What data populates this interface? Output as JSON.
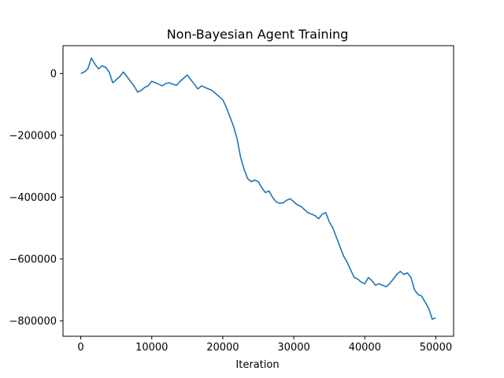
{
  "chart_data": {
    "type": "line",
    "title": "Non-Bayesian Agent Training",
    "xlabel": "Iteration",
    "ylabel": "",
    "xlim": [
      -2500,
      52500
    ],
    "ylim": [
      -850000,
      90000
    ],
    "x_ticks": [
      0,
      10000,
      20000,
      30000,
      40000,
      50000
    ],
    "x_tick_labels": [
      "0",
      "10000",
      "20000",
      "30000",
      "40000",
      "50000"
    ],
    "y_ticks": [
      0,
      -200000,
      -400000,
      -600000,
      -800000
    ],
    "y_tick_labels": [
      "0",
      "−200000",
      "−400000",
      "−600000",
      "−800000"
    ],
    "grid": false,
    "series": [
      {
        "name": "",
        "color": "#1f77b4",
        "x": [
          0,
          500,
          1000,
          1500,
          2000,
          2500,
          3000,
          3500,
          4000,
          4500,
          5000,
          5500,
          6000,
          6500,
          7000,
          7500,
          8000,
          8500,
          9000,
          9500,
          10000,
          10500,
          11000,
          11500,
          12000,
          12500,
          13000,
          13500,
          14000,
          14500,
          15000,
          15500,
          16000,
          16500,
          17000,
          17500,
          18000,
          18500,
          19000,
          19500,
          20000,
          20500,
          21000,
          21500,
          22000,
          22500,
          23000,
          23500,
          24000,
          24500,
          25000,
          25500,
          26000,
          26500,
          27000,
          27500,
          28000,
          28500,
          29000,
          29500,
          30000,
          30500,
          31000,
          31500,
          32000,
          32500,
          33000,
          33500,
          34000,
          34500,
          35000,
          35500,
          36000,
          36500,
          37000,
          37500,
          38000,
          38500,
          39000,
          39500,
          40000,
          40500,
          41000,
          41500,
          42000,
          42500,
          43000,
          43500,
          44000,
          44500,
          45000,
          45500,
          46000,
          46500,
          47000,
          47500,
          48000,
          48500,
          49000,
          49500,
          50000
        ],
        "values": [
          0,
          5000,
          15000,
          50000,
          30000,
          15000,
          25000,
          20000,
          5000,
          -30000,
          -20000,
          -10000,
          5000,
          -10000,
          -25000,
          -40000,
          -60000,
          -55000,
          -45000,
          -40000,
          -25000,
          -30000,
          -35000,
          -40000,
          -32000,
          -30000,
          -35000,
          -38000,
          -25000,
          -15000,
          -5000,
          -20000,
          -35000,
          -50000,
          -40000,
          -45000,
          -50000,
          -55000,
          -65000,
          -75000,
          -85000,
          -110000,
          -140000,
          -170000,
          -210000,
          -270000,
          -310000,
          -340000,
          -350000,
          -345000,
          -350000,
          -370000,
          -385000,
          -380000,
          -400000,
          -415000,
          -420000,
          -418000,
          -410000,
          -405000,
          -415000,
          -425000,
          -430000,
          -440000,
          -450000,
          -455000,
          -460000,
          -470000,
          -455000,
          -450000,
          -480000,
          -500000,
          -530000,
          -560000,
          -590000,
          -610000,
          -635000,
          -660000,
          -665000,
          -675000,
          -680000,
          -660000,
          -670000,
          -685000,
          -680000,
          -685000,
          -690000,
          -680000,
          -665000,
          -650000,
          -640000,
          -650000,
          -645000,
          -660000,
          -700000,
          -715000,
          -720000,
          -740000,
          -760000,
          -795000,
          -790000
        ]
      }
    ]
  }
}
